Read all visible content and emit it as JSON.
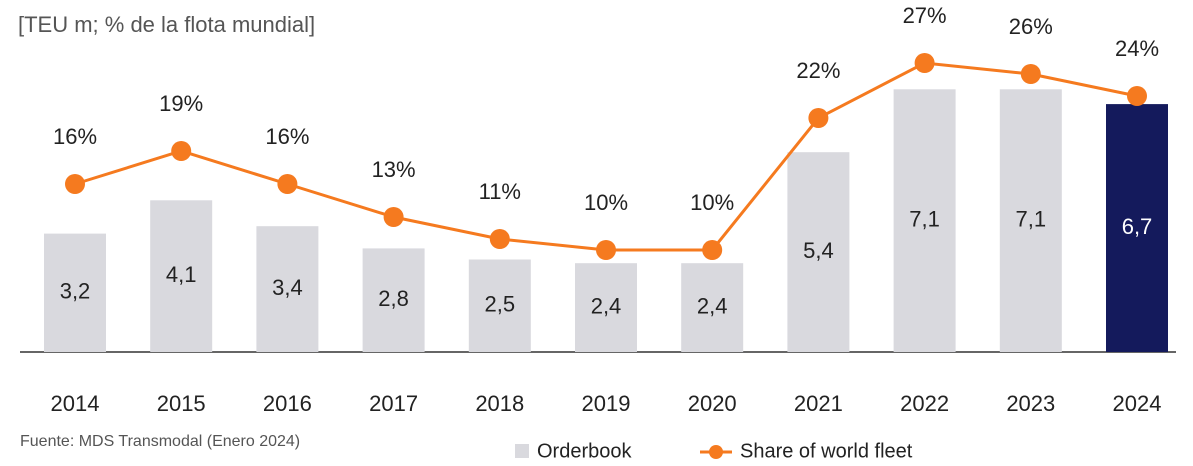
{
  "chart_data": {
    "type": "bar",
    "title": "[TEU m; % de la flota mundial]",
    "source": "Fuente: MDS Transmodal (Enero 2024)",
    "categories": [
      "2014",
      "2015",
      "2016",
      "2017",
      "2018",
      "2019",
      "2020",
      "2021",
      "2022",
      "2023",
      "2024"
    ],
    "series": [
      {
        "name": "Orderbook",
        "type": "bar",
        "color": "#d9d9de",
        "colors": [
          "#d9d9de",
          "#d9d9de",
          "#d9d9de",
          "#d9d9de",
          "#d9d9de",
          "#d9d9de",
          "#d9d9de",
          "#d9d9de",
          "#d9d9de",
          "#d9d9de",
          "#141a5c"
        ],
        "values": [
          3.2,
          4.1,
          3.4,
          2.8,
          2.5,
          2.4,
          2.4,
          5.4,
          7.1,
          7.1,
          6.7
        ],
        "value_labels": [
          "3,2",
          "4,1",
          "3,4",
          "2,8",
          "2,5",
          "2,4",
          "2,4",
          "5,4",
          "7,1",
          "7,1",
          "6,7"
        ]
      },
      {
        "name": "Share of world fleet",
        "type": "line",
        "axis": "y2",
        "color": "#f57a1f",
        "values": [
          16,
          19,
          16,
          13,
          11,
          10,
          10,
          22,
          27,
          26,
          24
        ],
        "value_labels": [
          "16%",
          "19%",
          "16%",
          "13%",
          "11%",
          "10%",
          "10%",
          "22%",
          "27%",
          "26%",
          "24%"
        ]
      }
    ],
    "ylim": [
      0,
      8
    ],
    "y2lim": [
      0,
      30
    ],
    "grid": false,
    "legend": "bottom"
  }
}
